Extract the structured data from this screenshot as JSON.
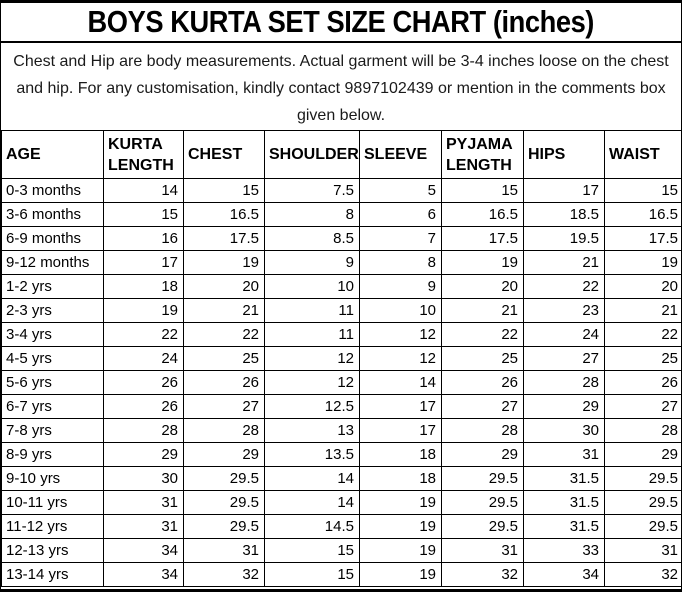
{
  "title": "BOYS KURTA SET SIZE CHART (inches)",
  "note": "Chest and Hip are body measurements. Actual garment will be 3-4 inches loose on the chest and hip. For any customisation, kindly contact 9897102439 or mention in the comments box given below.",
  "contact_phone": "9897102439",
  "colors": {
    "background": "#ffffff",
    "border": "#000000",
    "title_text": "#000000",
    "note_text": "#1a1a1a",
    "table_text": "#000000"
  },
  "chart_data": {
    "type": "table",
    "title": "BOYS KURTA SET SIZE CHART (inches)",
    "unit": "inches",
    "columns": [
      "AGE",
      "KURTA LENGTH",
      "CHEST",
      "SHOULDER",
      "SLEEVE",
      "PYJAMA LENGTH",
      "HIPS",
      "WAIST"
    ],
    "rows": [
      [
        "0-3 months",
        14,
        15,
        7.5,
        5,
        15,
        17,
        15
      ],
      [
        "3-6 months",
        15,
        16.5,
        8,
        6,
        16.5,
        18.5,
        16.5
      ],
      [
        "6-9 months",
        16,
        17.5,
        8.5,
        7,
        17.5,
        19.5,
        17.5
      ],
      [
        "9-12 months",
        17,
        19,
        9,
        8,
        19,
        21,
        19
      ],
      [
        "1-2 yrs",
        18,
        20,
        10,
        9,
        20,
        22,
        20
      ],
      [
        "2-3 yrs",
        19,
        21,
        11,
        10,
        21,
        23,
        21
      ],
      [
        "3-4 yrs",
        22,
        22,
        11,
        12,
        22,
        24,
        22
      ],
      [
        "4-5 yrs",
        24,
        25,
        12,
        12,
        25,
        27,
        25
      ],
      [
        "5-6 yrs",
        26,
        26,
        12,
        14,
        26,
        28,
        26
      ],
      [
        "6-7 yrs",
        26,
        27,
        12.5,
        17,
        27,
        29,
        27
      ],
      [
        "7-8 yrs",
        28,
        28,
        13,
        17,
        28,
        30,
        28
      ],
      [
        "8-9 yrs",
        29,
        29,
        13.5,
        18,
        29,
        31,
        29
      ],
      [
        "9-10 yrs",
        30,
        29.5,
        14,
        18,
        29.5,
        31.5,
        29.5
      ],
      [
        "10-11 yrs",
        31,
        29.5,
        14,
        19,
        29.5,
        31.5,
        29.5
      ],
      [
        "11-12 yrs",
        31,
        29.5,
        14.5,
        19,
        29.5,
        31.5,
        29.5
      ],
      [
        "12-13 yrs",
        34,
        31,
        15,
        19,
        31,
        33,
        31
      ],
      [
        "13-14 yrs",
        34,
        32,
        15,
        19,
        32,
        34,
        32
      ]
    ]
  }
}
